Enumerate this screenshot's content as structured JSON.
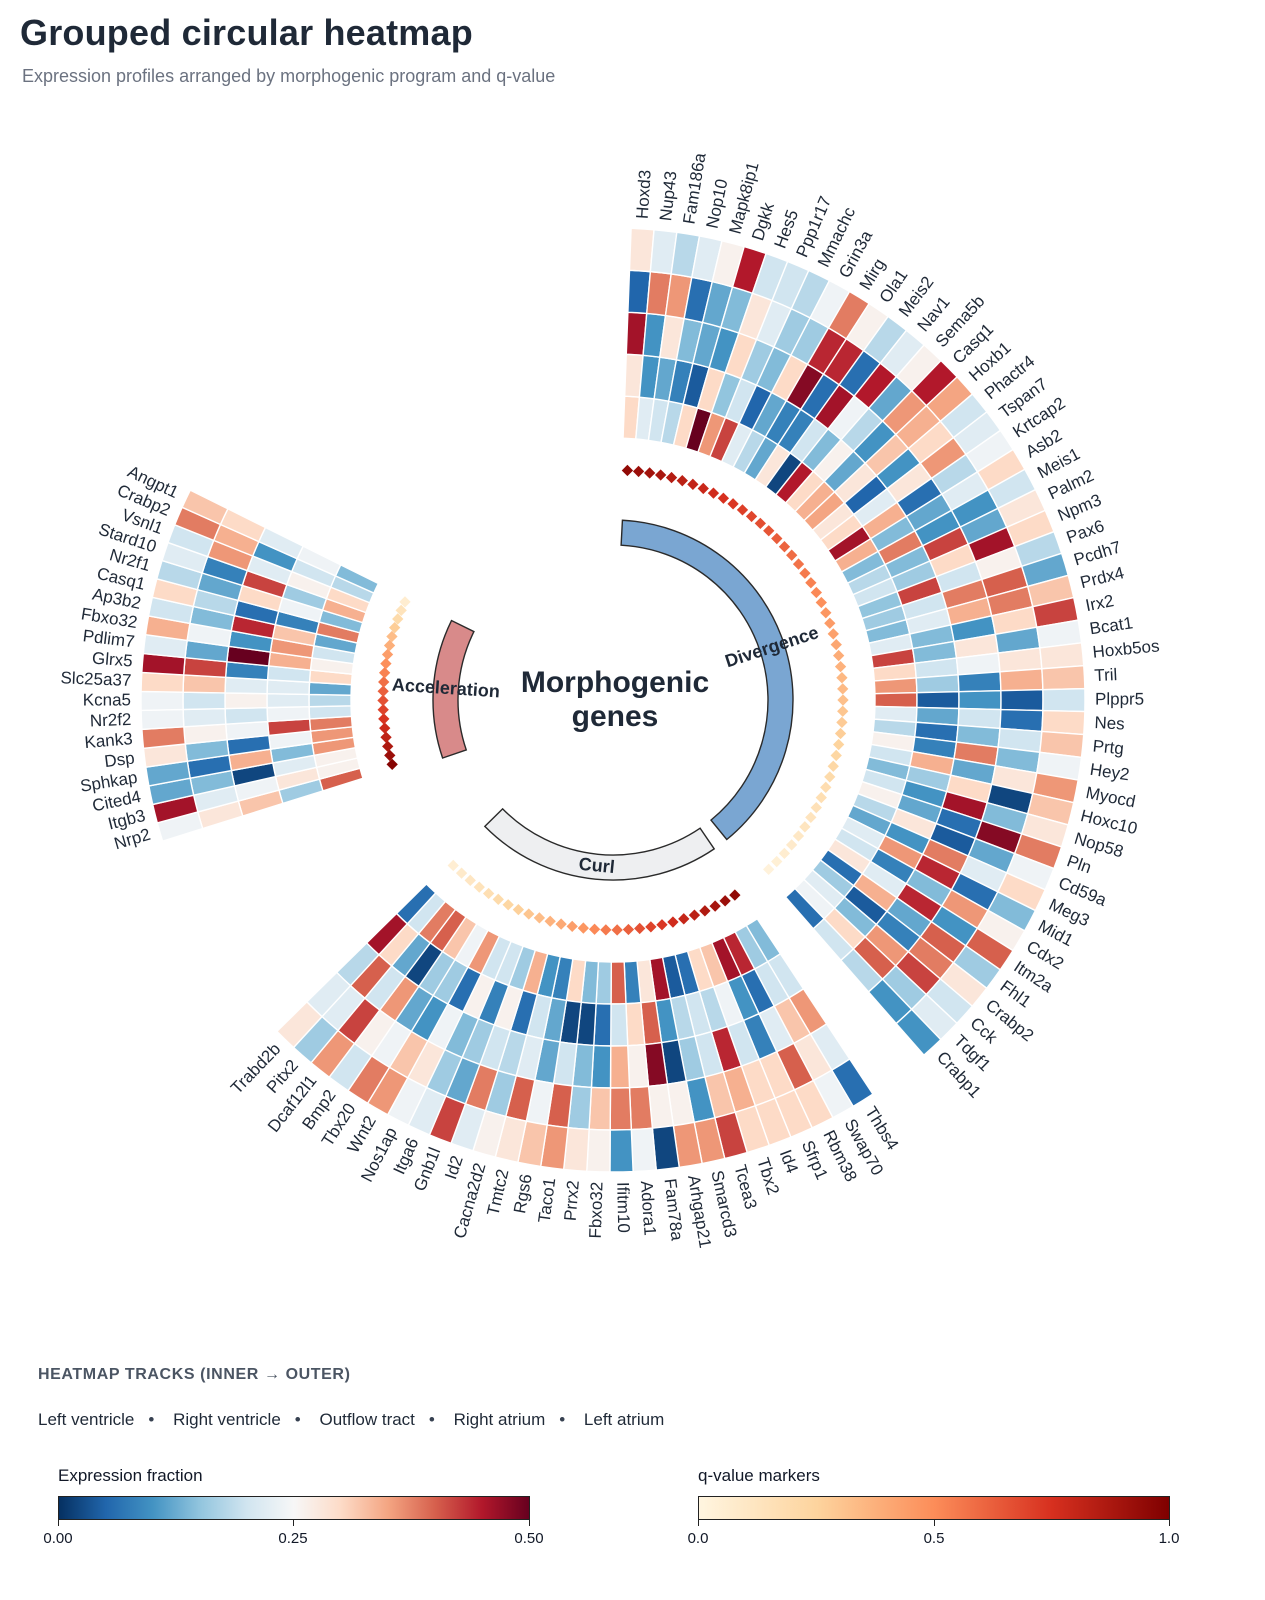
{
  "title": "Grouped circular heatmap",
  "subtitle": "Expression profiles arranged by morphogenic program and q-value",
  "center_label": [
    "Morphogenic",
    "genes"
  ],
  "legend": {
    "tracks_heading": "HEATMAP TRACKS  (INNER → OUTER)",
    "tracks": [
      "Left ventricle",
      "Right ventricle",
      "Outflow tract",
      "Right atrium",
      "Left atrium"
    ],
    "expression_title": "Expression fraction",
    "expression_ticks": [
      "0.00",
      "0.25",
      "0.50"
    ],
    "qvalue_title": "q-value markers",
    "qvalue_ticks": [
      "0.0",
      "0.5",
      "1.0"
    ]
  },
  "colors": {
    "divergence": "#7aa6d2",
    "acceleration": "#d88a8a",
    "curl": "#eeeff1",
    "heatmap_scale": [
      "#053061",
      "#2166ac",
      "#4393c3",
      "#92c5de",
      "#d1e5f0",
      "#f7f7f7",
      "#fddbc7",
      "#f4a582",
      "#d6604d",
      "#b2182b",
      "#67001f"
    ],
    "qvalue_scale": [
      "#fff5e0",
      "#fdd49e",
      "#fc8d59",
      "#d7301f",
      "#7f0000"
    ]
  },
  "chart_data": {
    "type": "heatmap",
    "layout": "grouped circular",
    "value_range": [
      0,
      0.5
    ],
    "tracks": [
      "Left ventricle",
      "Right ventricle",
      "Outflow tract",
      "Right atrium",
      "Left atrium"
    ],
    "groups": [
      {
        "name": "Divergence",
        "genes": [
          "Hoxd3",
          "Nup43",
          "Fam186a",
          "Nop10",
          "Mapk8ip1",
          "Dgkk",
          "Hes5",
          "Ppp1r17",
          "Mmachc",
          "Grin3a",
          "Mirg",
          "Ola1",
          "Meis2",
          "Nav1",
          "Sema5b",
          "Casq1",
          "Hoxb1",
          "Phactr4",
          "Tspan7",
          "Krtcap2",
          "Asb2",
          "Meis1",
          "Palm2",
          "Npm3",
          "Pax6",
          "Pcdh7",
          "Prdx4",
          "Irx2",
          "Bcat1",
          "Hoxb5os",
          "Tril",
          "Plppr5",
          "Nes",
          "Prtg",
          "Hey2",
          "Myocd",
          "Hoxc10",
          "Nop58",
          "Pln",
          "Cd59a",
          "Meg3",
          "Mid1",
          "Cdx2",
          "Itm2a",
          "Fhl1",
          "Crabp2",
          "Cck",
          "Tdgf1",
          "Crabp1"
        ],
        "qvalues": [
          0.95,
          0.92,
          0.9,
          0.88,
          0.85,
          0.83,
          0.81,
          0.79,
          0.77,
          0.75,
          0.73,
          0.71,
          0.69,
          0.67,
          0.65,
          0.63,
          0.61,
          0.59,
          0.57,
          0.55,
          0.53,
          0.51,
          0.49,
          0.47,
          0.45,
          0.43,
          0.41,
          0.39,
          0.37,
          0.35,
          0.34,
          0.32,
          0.3,
          0.28,
          0.27,
          0.25,
          0.23,
          0.22,
          0.2,
          0.18,
          0.17,
          0.15,
          0.13,
          0.12,
          0.1,
          0.08,
          0.06,
          0.04,
          0.02
        ],
        "values": [
          [
            0.3,
            0.28,
            0.46,
            0.05,
            0.28
          ],
          [
            0.22,
            0.1,
            0.1,
            0.38,
            0.22
          ],
          [
            0.2,
            0.12,
            0.28,
            0.36,
            0.18
          ],
          [
            0.18,
            0.08,
            0.14,
            0.06,
            0.22
          ],
          [
            0.3,
            0.04,
            0.12,
            0.12,
            0.26
          ],
          [
            0.5,
            0.3,
            0.1,
            0.14,
            0.45
          ],
          [
            0.36,
            0.15,
            0.3,
            0.28,
            0.2
          ],
          [
            0.42,
            0.2,
            0.16,
            0.22,
            0.2
          ],
          [
            0.22,
            0.05,
            0.14,
            0.16,
            0.18
          ],
          [
            0.18,
            0.12,
            0.3,
            0.16,
            0.24
          ],
          [
            0.12,
            0.08,
            0.48,
            0.44,
            0.38
          ],
          [
            0.28,
            0.08,
            0.06,
            0.44,
            0.26
          ],
          [
            0.02,
            0.2,
            0.46,
            0.06,
            0.18
          ],
          [
            0.45,
            0.14,
            0.24,
            0.45,
            0.22
          ],
          [
            0.3,
            0.26,
            0.18,
            0.12,
            0.26
          ],
          [
            0.34,
            0.12,
            0.1,
            0.36,
            0.45
          ],
          [
            0.35,
            0.28,
            0.32,
            0.34,
            0.35
          ],
          [
            0.28,
            0.05,
            0.1,
            0.3,
            0.2
          ],
          [
            0.3,
            0.22,
            0.28,
            0.36,
            0.22
          ],
          [
            0.46,
            0.34,
            0.06,
            0.18,
            0.24
          ],
          [
            0.34,
            0.14,
            0.12,
            0.22,
            0.3
          ],
          [
            0.14,
            0.38,
            0.1,
            0.1,
            0.2
          ],
          [
            0.18,
            0.14,
            0.42,
            0.12,
            0.28
          ],
          [
            0.2,
            0.16,
            0.3,
            0.46,
            0.3
          ],
          [
            0.15,
            0.42,
            0.2,
            0.26,
            0.18
          ],
          [
            0.16,
            0.2,
            0.38,
            0.4,
            0.12
          ],
          [
            0.14,
            0.22,
            0.34,
            0.38,
            0.32
          ],
          [
            0.22,
            0.14,
            0.1,
            0.3,
            0.42
          ],
          [
            0.42,
            0.14,
            0.28,
            0.12,
            0.24
          ],
          [
            0.3,
            0.2,
            0.24,
            0.28,
            0.28
          ],
          [
            0.36,
            0.16,
            0.08,
            0.34,
            0.32
          ],
          [
            0.4,
            0.04,
            0.1,
            0.04,
            0.2
          ],
          [
            0.22,
            0.12,
            0.2,
            0.06,
            0.3
          ],
          [
            0.18,
            0.06,
            0.14,
            0.2,
            0.32
          ],
          [
            0.26,
            0.08,
            0.38,
            0.14,
            0.24
          ],
          [
            0.2,
            0.34,
            0.12,
            0.28,
            0.36
          ],
          [
            0.14,
            0.16,
            0.3,
            0.02,
            0.32
          ],
          [
            0.2,
            0.1,
            0.46,
            0.14,
            0.28
          ],
          [
            0.26,
            0.12,
            0.06,
            0.48,
            0.38
          ],
          [
            0.18,
            0.28,
            0.04,
            0.12,
            0.24
          ],
          [
            0.12,
            0.1,
            0.38,
            0.22,
            0.3
          ],
          [
            0.22,
            0.36,
            0.44,
            0.06,
            0.14
          ],
          [
            0.2,
            0.08,
            0.14,
            0.36,
            0.26
          ],
          [
            0.28,
            0.22,
            0.44,
            0.1,
            0.4
          ],
          [
            0.06,
            0.34,
            0.12,
            0.4,
            0.16
          ],
          [
            0.16,
            0.04,
            0.08,
            0.38,
            0.28
          ],
          [
            0.22,
            0.14,
            0.36,
            0.42,
            0.2
          ],
          [
            0.24,
            0.3,
            0.4,
            0.16,
            0.22
          ],
          [
            0.06,
            0.2,
            0.18,
            0.1,
            0.1
          ]
        ]
      },
      {
        "name": "Curl",
        "genes": [
          "Thbs4",
          "Swap70",
          "Rbm38",
          "Sfrp1",
          "Id4",
          "Tbx2",
          "Tcea3",
          "Smarcd3",
          "Arhgap21",
          "Fam78a",
          "Adora1",
          "Ifitm10",
          "Fbxo32",
          "Prrx2",
          "Taco1",
          "Rgs6",
          "Tmtc2",
          "Cacna2d2",
          "Id2",
          "Gnb1l",
          "Itga6",
          "Nos1ap",
          "Wnt2",
          "Tbx20",
          "Bmp2",
          "Dcaf12l1",
          "Pitx2",
          "Trabd2b"
        ],
        "qvalues": [
          0.95,
          0.92,
          0.89,
          0.86,
          0.83,
          0.8,
          0.77,
          0.73,
          0.7,
          0.66,
          0.62,
          0.58,
          0.55,
          0.51,
          0.47,
          0.44,
          0.4,
          0.37,
          0.33,
          0.3,
          0.26,
          0.23,
          0.2,
          0.17,
          0.14,
          0.11,
          0.08,
          0.05
        ],
        "values": [
          [
            0.14,
            0.2,
            0.36,
            0.22,
            0.06
          ],
          [
            0.16,
            0.2,
            0.32,
            0.28,
            0.24
          ],
          [
            0.44,
            0.06,
            0.22,
            0.4,
            0.3
          ],
          [
            0.46,
            0.1,
            0.08,
            0.3,
            0.3
          ],
          [
            0.32,
            0.24,
            0.2,
            0.3,
            0.3
          ],
          [
            0.3,
            0.18,
            0.44,
            0.34,
            0.3
          ],
          [
            0.06,
            0.2,
            0.2,
            0.32,
            0.42
          ],
          [
            0.04,
            0.18,
            0.16,
            0.1,
            0.36
          ],
          [
            0.46,
            0.1,
            0.02,
            0.26,
            0.36
          ],
          [
            0.28,
            0.4,
            0.48,
            0.26,
            0.02
          ],
          [
            0.08,
            0.3,
            0.26,
            0.38,
            0.24
          ],
          [
            0.4,
            0.2,
            0.34,
            0.38,
            0.1
          ],
          [
            0.16,
            0.06,
            0.1,
            0.32,
            0.26
          ],
          [
            0.14,
            0.02,
            0.14,
            0.16,
            0.28
          ],
          [
            0.3,
            0.02,
            0.2,
            0.4,
            0.36
          ],
          [
            0.08,
            0.12,
            0.12,
            0.24,
            0.32
          ],
          [
            0.1,
            0.2,
            0.22,
            0.4,
            0.28
          ],
          [
            0.34,
            0.06,
            0.18,
            0.16,
            0.26
          ],
          [
            0.16,
            0.26,
            0.2,
            0.38,
            0.22
          ],
          [
            0.2,
            0.08,
            0.16,
            0.12,
            0.42
          ],
          [
            0.2,
            0.26,
            0.14,
            0.16,
            0.22
          ],
          [
            0.36,
            0.06,
            0.24,
            0.28,
            0.24
          ],
          [
            0.24,
            0.16,
            0.1,
            0.32,
            0.36
          ],
          [
            0.32,
            0.16,
            0.12,
            0.24,
            0.38
          ],
          [
            0.4,
            0.02,
            0.36,
            0.26,
            0.2
          ],
          [
            0.38,
            0.12,
            0.2,
            0.42,
            0.36
          ],
          [
            0.2,
            0.3,
            0.4,
            0.22,
            0.16
          ],
          [
            0.06,
            0.46,
            0.18,
            0.22,
            0.28
          ]
        ]
      },
      {
        "name": "Acceleration",
        "genes": [
          "Nrp2",
          "Itgb3",
          "Cited4",
          "Sphkap",
          "Dsp",
          "Kank3",
          "Nr2f2",
          "Kcna5",
          "Slc25a37",
          "Glrx5",
          "Pdlim7",
          "Fbxo32",
          "Ap3b2",
          "Casq1",
          "Nr2f1",
          "Stard10",
          "Vsnl1",
          "Crabp2",
          "Angpt1"
        ],
        "qvalues": [
          0.98,
          0.92,
          0.87,
          0.82,
          0.78,
          0.74,
          0.7,
          0.66,
          0.62,
          0.58,
          0.53,
          0.49,
          0.44,
          0.38,
          0.33,
          0.27,
          0.2,
          0.14,
          0.06
        ],
        "values": [
          [
            0.4,
            0.16,
            0.32,
            0.28,
            0.24
          ],
          [
            0.26,
            0.28,
            0.24,
            0.22,
            0.46
          ],
          [
            0.26,
            0.22,
            0.02,
            0.14,
            0.12
          ],
          [
            0.36,
            0.14,
            0.34,
            0.06,
            0.12
          ],
          [
            0.36,
            0.24,
            0.06,
            0.14,
            0.28
          ],
          [
            0.38,
            0.42,
            0.24,
            0.26,
            0.38
          ],
          [
            0.2,
            0.24,
            0.2,
            0.22,
            0.24
          ],
          [
            0.18,
            0.22,
            0.26,
            0.2,
            0.24
          ],
          [
            0.12,
            0.22,
            0.22,
            0.32,
            0.3
          ],
          [
            0.3,
            0.2,
            0.08,
            0.42,
            0.46
          ],
          [
            0.26,
            0.34,
            0.5,
            0.12,
            0.22
          ],
          [
            0.2,
            0.36,
            0.1,
            0.24,
            0.34
          ],
          [
            0.12,
            0.32,
            0.44,
            0.14,
            0.2
          ],
          [
            0.38,
            0.08,
            0.06,
            0.18,
            0.3
          ],
          [
            0.14,
            0.24,
            0.3,
            0.12,
            0.18
          ],
          [
            0.34,
            0.16,
            0.42,
            0.08,
            0.22
          ],
          [
            0.3,
            0.26,
            0.22,
            0.36,
            0.2
          ],
          [
            0.18,
            0.2,
            0.1,
            0.34,
            0.38
          ],
          [
            0.14,
            0.24,
            0.22,
            0.3,
            0.32
          ]
        ]
      }
    ]
  }
}
